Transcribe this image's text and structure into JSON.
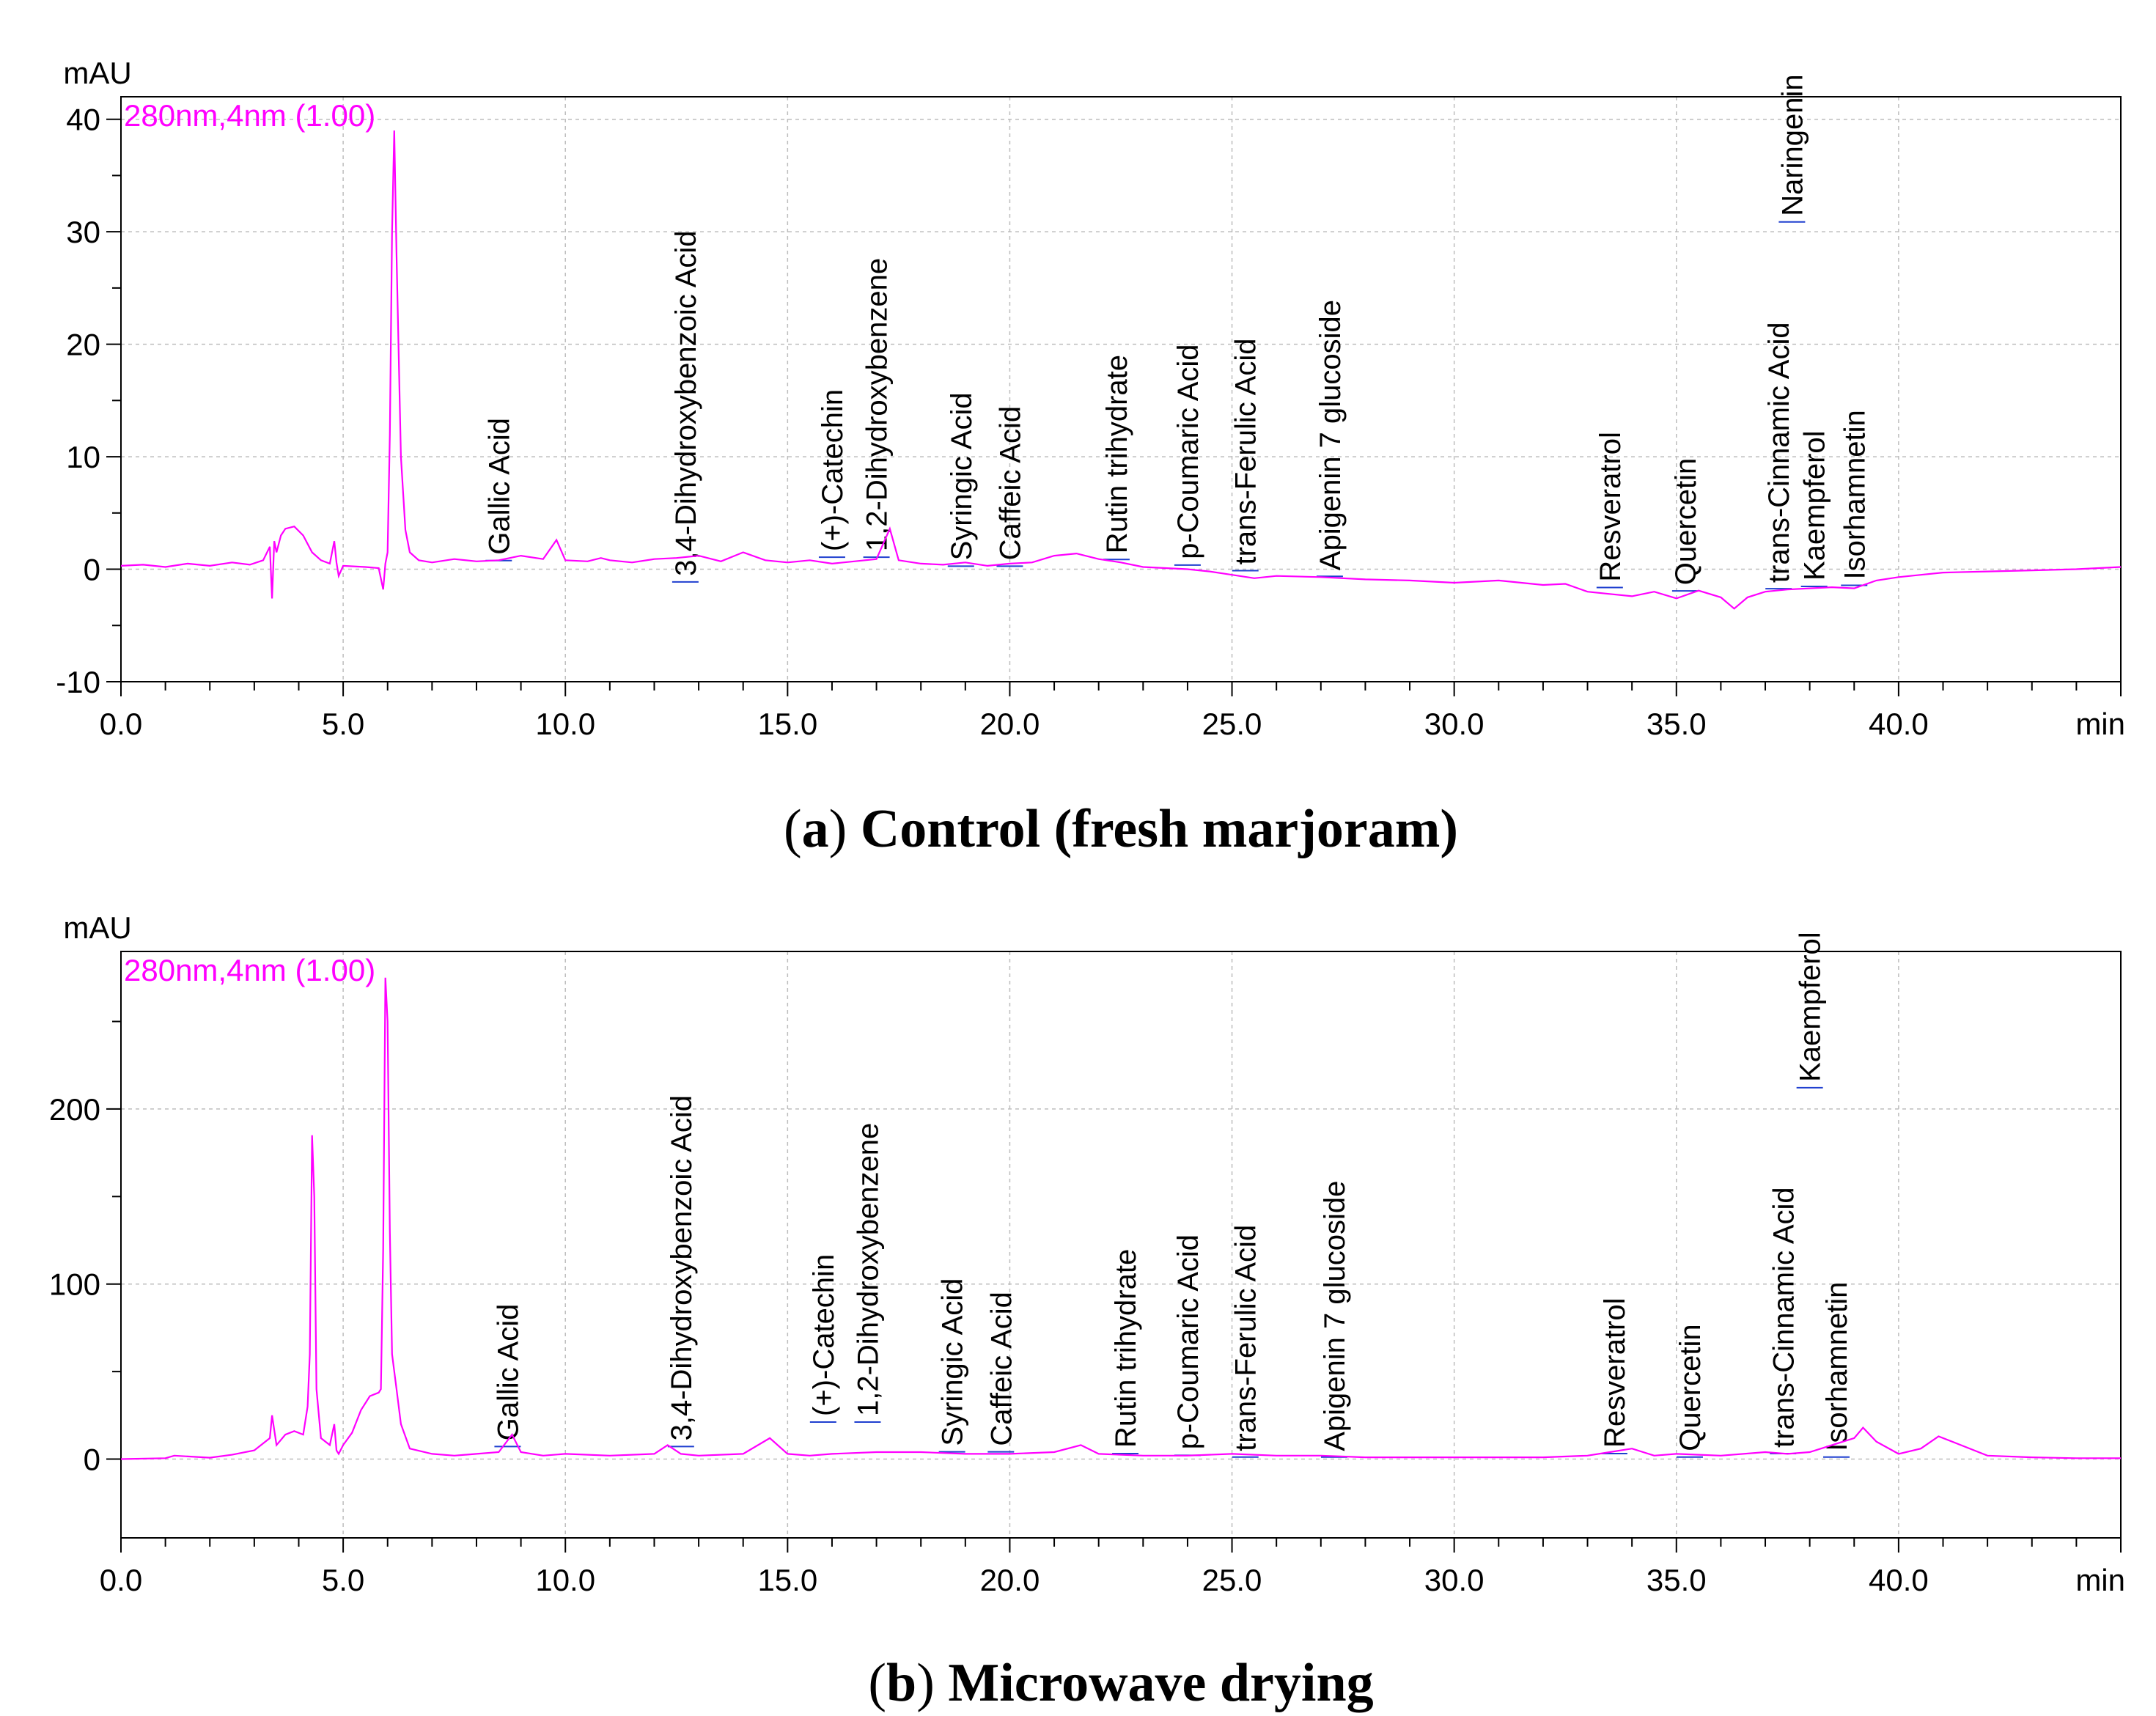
{
  "chart_data": [
    {
      "type": "line",
      "title": "(a) Control (fresh marjoram)",
      "caption_letter": "a",
      "caption_text": "Control (fresh marjoram)",
      "ylabel": "mAU",
      "xlabel": "min",
      "wavelength_label": "280nm,4nm (1.00)",
      "xlim": [
        0,
        45
      ],
      "ylim": [
        -10,
        42
      ],
      "yticks": [
        -10,
        0,
        10,
        20,
        30,
        40
      ],
      "ytick_labels": [
        "-10",
        "0",
        "10",
        "20",
        "30",
        "40"
      ],
      "xticks": [
        0,
        5,
        10,
        15,
        20,
        25,
        30,
        35,
        40
      ],
      "xtick_labels": [
        "0.0",
        "5.0",
        "10.0",
        "15.0",
        "20.0",
        "25.0",
        "30.0",
        "35.0",
        "40.0"
      ],
      "grid": true,
      "series": [
        {
          "name": "280nm,4nm (1.00)",
          "color": "#ff00ff",
          "x": [
            0,
            0.5,
            1.0,
            1.5,
            2.0,
            2.5,
            2.9,
            3.2,
            3.35,
            3.4,
            3.45,
            3.5,
            3.6,
            3.7,
            3.9,
            4.1,
            4.3,
            4.5,
            4.7,
            4.8,
            4.85,
            4.9,
            5.0,
            5.5,
            5.8,
            5.9,
            5.95,
            6.0,
            6.05,
            6.1,
            6.15,
            6.2,
            6.3,
            6.4,
            6.5,
            6.7,
            7.0,
            7.5,
            8.0,
            8.5,
            9.0,
            9.5,
            9.8,
            10.0,
            10.5,
            10.8,
            11.0,
            11.5,
            12.0,
            12.5,
            13.0,
            13.5,
            14.0,
            14.5,
            15.0,
            15.5,
            16.0,
            16.5,
            17.0,
            17.3,
            17.5,
            18.0,
            18.5,
            19.0,
            19.5,
            20.0,
            20.5,
            21.0,
            21.5,
            22.0,
            22.5,
            23.0,
            23.5,
            24.0,
            24.5,
            25.0,
            25.5,
            26.0,
            27.0,
            28.0,
            29.0,
            30.0,
            31.0,
            32.0,
            32.5,
            33.0,
            33.5,
            34.0,
            34.5,
            35.0,
            35.5,
            36.0,
            36.3,
            36.6,
            37.0,
            37.5,
            38.0,
            38.5,
            39.0,
            39.5,
            40.0,
            40.5,
            41.0,
            42.0,
            43.0,
            44.0,
            45.0
          ],
          "values": [
            0.3,
            0.4,
            0.2,
            0.5,
            0.3,
            0.6,
            0.4,
            0.8,
            2.0,
            -2.6,
            2.5,
            1.5,
            3.0,
            3.6,
            3.8,
            3.0,
            1.5,
            0.8,
            0.5,
            2.5,
            0.6,
            -0.6,
            0.3,
            0.2,
            0.1,
            -1.8,
            0.5,
            1.5,
            12.0,
            30.0,
            39.0,
            28.0,
            10.0,
            3.5,
            1.5,
            0.8,
            0.6,
            0.9,
            0.7,
            0.8,
            1.2,
            0.9,
            2.6,
            0.8,
            0.7,
            1.0,
            0.8,
            0.6,
            0.9,
            1.0,
            1.2,
            0.7,
            1.5,
            0.8,
            0.6,
            0.8,
            0.5,
            0.7,
            0.9,
            3.6,
            0.8,
            0.5,
            0.4,
            0.6,
            0.3,
            0.5,
            0.6,
            1.2,
            1.4,
            0.9,
            0.6,
            0.2,
            0.1,
            0.0,
            -0.2,
            -0.5,
            -0.8,
            -0.6,
            -0.7,
            -0.9,
            -1.0,
            -1.2,
            -1.0,
            -1.4,
            -1.3,
            -2.0,
            -2.2,
            -2.4,
            -2.0,
            -2.6,
            -1.9,
            -2.5,
            -3.5,
            -2.5,
            -2.0,
            -1.8,
            -1.7,
            -1.6,
            -1.7,
            -1.0,
            -0.7,
            -0.5,
            -0.3,
            -0.2,
            -0.1,
            0.0,
            0.2
          ]
        }
      ],
      "peaks": [
        {
          "name": "Gallic Acid",
          "rt": 8.5,
          "label_y": 0.9
        },
        {
          "name": "3,4-Dihydroxybenzoic Acid",
          "rt": 12.7,
          "label_y": -1.0
        },
        {
          "name": "(+)-Catechin",
          "rt": 16.0,
          "label_y": 1.2
        },
        {
          "name": "1,2-Dihydroxybenzene",
          "rt": 17.0,
          "label_y": 1.2
        },
        {
          "name": "Syringic Acid",
          "rt": 18.9,
          "label_y": 0.4
        },
        {
          "name": "Caffeic Acid",
          "rt": 20.0,
          "label_y": 0.4
        },
        {
          "name": "Rutin trihydrate",
          "rt": 22.4,
          "label_y": 1.0
        },
        {
          "name": "p-Coumaric Acid",
          "rt": 24.0,
          "label_y": 0.5
        },
        {
          "name": "trans-Ferulic Acid",
          "rt": 25.3,
          "label_y": 0.0
        },
        {
          "name": "Apigenin 7 glucoside",
          "rt": 27.2,
          "label_y": -0.5
        },
        {
          "name": "Resveratrol",
          "rt": 33.5,
          "label_y": -1.5
        },
        {
          "name": "Quercetin",
          "rt": 35.2,
          "label_y": -1.8
        },
        {
          "name": "trans-Cinnamic Acid",
          "rt": 37.3,
          "label_y": -1.6
        },
        {
          "name": "Naringenin",
          "rt": 37.6,
          "label_y": 31.0
        },
        {
          "name": "Kaempferol",
          "rt": 38.1,
          "label_y": -1.4
        },
        {
          "name": "Isorhamnetin",
          "rt": 39.0,
          "label_y": -1.3
        }
      ]
    },
    {
      "type": "line",
      "title": "(b) Microwave drying",
      "caption_letter": "b",
      "caption_text": "Microwave drying",
      "ylabel": "mAU",
      "xlabel": "min",
      "wavelength_label": "280nm,4nm (1.00)",
      "xlim": [
        0,
        45
      ],
      "ylim": [
        -45,
        290
      ],
      "yticks": [
        0,
        100,
        200
      ],
      "ytick_labels": [
        "0",
        "100",
        "200"
      ],
      "xticks": [
        0,
        5,
        10,
        15,
        20,
        25,
        30,
        35,
        40
      ],
      "xtick_labels": [
        "0.0",
        "5.0",
        "10.0",
        "15.0",
        "20.0",
        "25.0",
        "30.0",
        "35.0",
        "40.0"
      ],
      "grid": true,
      "series": [
        {
          "name": "280nm,4nm (1.00)",
          "color": "#ff00ff",
          "x": [
            0,
            1.0,
            1.2,
            2.0,
            2.5,
            3.0,
            3.35,
            3.4,
            3.5,
            3.7,
            3.9,
            4.1,
            4.2,
            4.25,
            4.3,
            4.35,
            4.4,
            4.5,
            4.7,
            4.8,
            4.85,
            4.9,
            5.0,
            5.2,
            5.4,
            5.6,
            5.8,
            5.85,
            5.9,
            5.95,
            6.0,
            6.05,
            6.1,
            6.2,
            6.3,
            6.5,
            7.0,
            7.5,
            8.0,
            8.5,
            8.8,
            9.0,
            9.5,
            10.0,
            11.0,
            12.0,
            12.3,
            12.6,
            13.0,
            14.0,
            14.6,
            15.0,
            15.5,
            16.0,
            17.0,
            18.0,
            19.0,
            20.0,
            21.0,
            21.6,
            22.0,
            23.0,
            24.0,
            25.0,
            26.0,
            27.0,
            28.0,
            30.0,
            32.0,
            33.0,
            33.5,
            34.0,
            34.5,
            35.0,
            36.0,
            37.0,
            37.5,
            38.0,
            38.5,
            39.0,
            39.2,
            39.5,
            40.0,
            40.5,
            40.9,
            41.3,
            42.0,
            43.0,
            44.0,
            45.0
          ],
          "values": [
            0,
            0.5,
            2.0,
            0.8,
            2.5,
            5.0,
            12.0,
            25.0,
            8.0,
            14.0,
            16.0,
            14.0,
            30.0,
            60.0,
            185.0,
            150.0,
            40.0,
            12.0,
            8.0,
            20.0,
            5.0,
            3.0,
            8.0,
            15.0,
            28.0,
            36.0,
            38.0,
            40.0,
            120.0,
            275.0,
            250.0,
            130.0,
            60.0,
            40.0,
            20.0,
            6.0,
            3.0,
            2.0,
            3.0,
            4.0,
            14.0,
            4.0,
            2.0,
            3.0,
            2.0,
            3.0,
            8.0,
            3.0,
            2.0,
            3.0,
            12.0,
            3.0,
            2.0,
            3.0,
            4.0,
            4.0,
            3.0,
            3.0,
            4.0,
            8.0,
            3.0,
            2.0,
            2.0,
            3.0,
            2.0,
            2.0,
            1.0,
            1.0,
            1.0,
            2.0,
            4.0,
            6.0,
            2.0,
            3.0,
            2.0,
            4.0,
            3.0,
            4.0,
            8.0,
            12.0,
            18.0,
            10.0,
            3.0,
            6.0,
            13.0,
            9.0,
            2.0,
            1.0,
            0.5,
            0.5
          ]
        }
      ],
      "peaks": [
        {
          "name": "Gallic Acid",
          "rt": 8.7,
          "label_y": 8.0
        },
        {
          "name": "3,4-Dihydroxybenzoic Acid",
          "rt": 12.6,
          "label_y": 8.0
        },
        {
          "name": "(+)-Catechin",
          "rt": 15.8,
          "label_y": 22.0
        },
        {
          "name": "1,2-Dihydroxybenzene",
          "rt": 16.8,
          "label_y": 22.0
        },
        {
          "name": "Syringic Acid",
          "rt": 18.7,
          "label_y": 5.0
        },
        {
          "name": "Caffeic Acid",
          "rt": 19.8,
          "label_y": 5.0
        },
        {
          "name": "Rutin trihydrate",
          "rt": 22.6,
          "label_y": 4.0
        },
        {
          "name": "p-Coumaric Acid",
          "rt": 24.0,
          "label_y": 3.0
        },
        {
          "name": "trans-Ferulic Acid",
          "rt": 25.3,
          "label_y": 2.0
        },
        {
          "name": "Apigenin 7 glucoside",
          "rt": 27.3,
          "label_y": 2.0
        },
        {
          "name": "Resveratrol",
          "rt": 33.6,
          "label_y": 4.0
        },
        {
          "name": "Quercetin",
          "rt": 35.3,
          "label_y": 2.0
        },
        {
          "name": "trans-Cinnamic Acid",
          "rt": 37.4,
          "label_y": 4.0
        },
        {
          "name": "Kaempferol",
          "rt": 38.0,
          "label_y": 213.0
        },
        {
          "name": "Isorhamnetin",
          "rt": 38.6,
          "label_y": 2.0
        }
      ]
    }
  ]
}
